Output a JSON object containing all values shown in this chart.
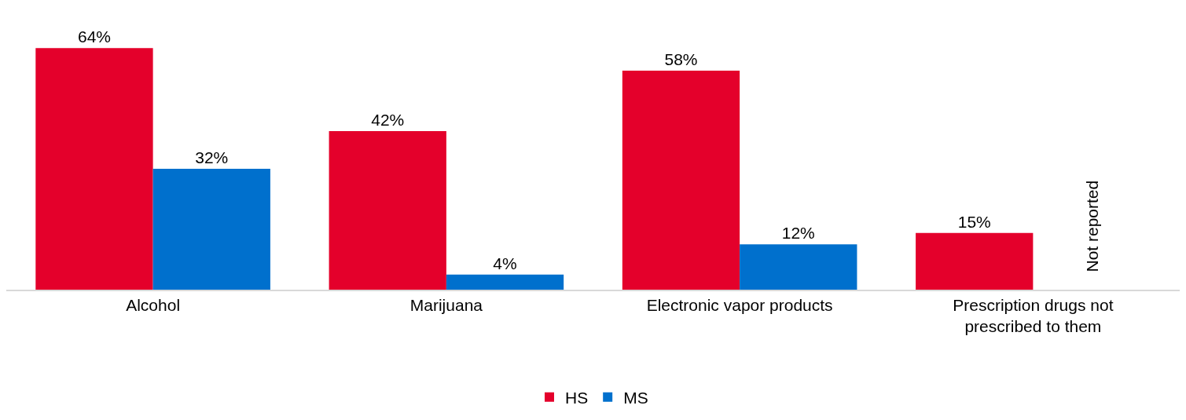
{
  "chart_data": {
    "type": "bar",
    "categories": [
      "Alcohol",
      "Marijuana",
      "Electronic vapor products",
      "Prescription drugs not prescribed to them"
    ],
    "series": [
      {
        "name": "HS",
        "color": "#e4002b",
        "values": [
          64,
          42,
          58,
          15
        ],
        "value_labels": [
          "64%",
          "42%",
          "58%",
          "15%"
        ]
      },
      {
        "name": "MS",
        "color": "#0070cd",
        "values": [
          32,
          4,
          12,
          null
        ],
        "value_labels": [
          "32%",
          "4%",
          "12%",
          null
        ]
      }
    ],
    "annotations": [
      "Not reported"
    ],
    "legend": "bottom",
    "tick_labels": "x",
    "grid": false
  }
}
